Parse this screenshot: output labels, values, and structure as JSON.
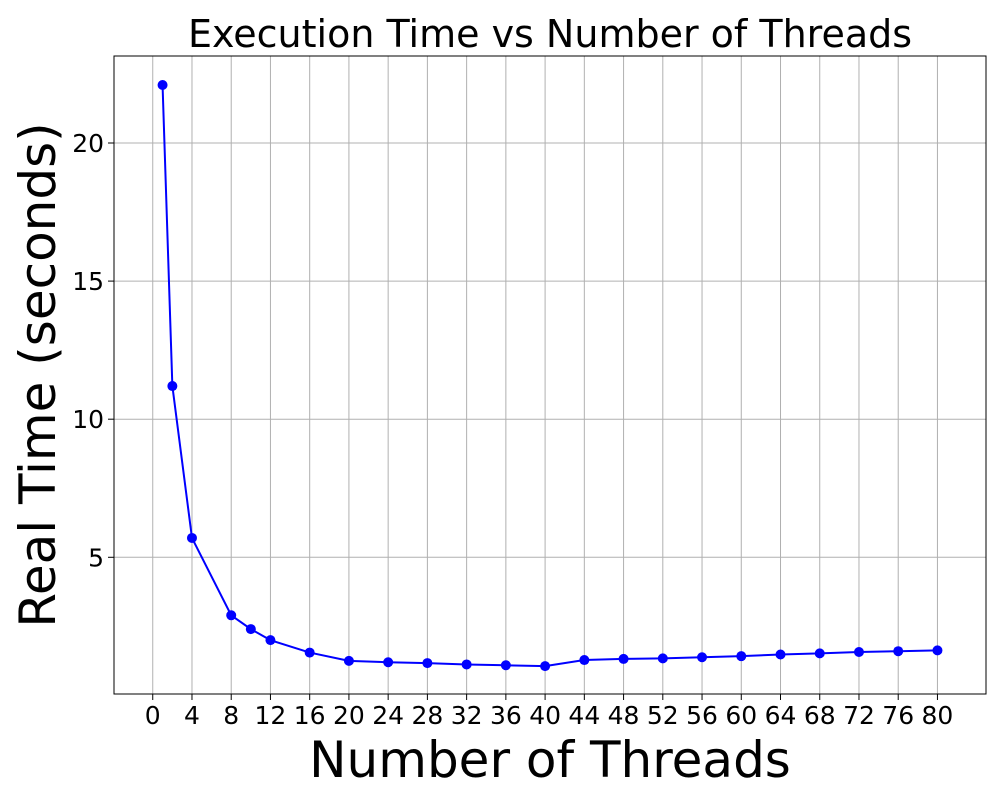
{
  "chart_data": {
    "type": "line",
    "title": "Execution Time vs Number of Threads",
    "xlabel": "Number of Threads",
    "ylabel": "Real Time (seconds)",
    "xlim": [
      -3.95,
      84.95
    ],
    "ylim": [
      0.05,
      23.15
    ],
    "xticks": [
      0,
      4,
      8,
      12,
      16,
      20,
      24,
      28,
      32,
      36,
      40,
      44,
      48,
      52,
      56,
      60,
      64,
      68,
      72,
      76,
      80
    ],
    "yticks": [
      5,
      10,
      15,
      20
    ],
    "grid": true,
    "line_color": "#0000ff",
    "series": [
      {
        "x": [
          1,
          2,
          4,
          8,
          10,
          12,
          16,
          20,
          24,
          28,
          32,
          36,
          40,
          44,
          48,
          52,
          56,
          60,
          64,
          68,
          72,
          76,
          80
        ],
        "y": [
          22.1,
          11.2,
          5.7,
          2.9,
          2.4,
          2.0,
          1.55,
          1.25,
          1.2,
          1.17,
          1.12,
          1.09,
          1.06,
          1.28,
          1.32,
          1.34,
          1.38,
          1.42,
          1.48,
          1.52,
          1.57,
          1.6,
          1.63
        ]
      }
    ]
  }
}
